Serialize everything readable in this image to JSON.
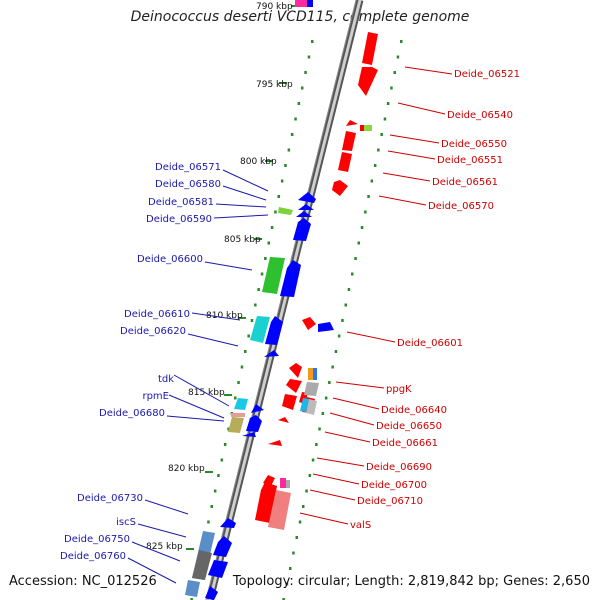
{
  "title": "Deinococcus deserti VCD115, complete genome",
  "accession_text": "Accession: NC_012526",
  "summary_text": "Topology: circular; Length: 2,819,842 bp; Genes: 2,650",
  "scale_labels": [
    "790 kbp",
    "795 kbp",
    "800 kbp",
    "805 kbp",
    "810 kbp",
    "815 kbp",
    "820 kbp",
    "825 kbp"
  ],
  "left_gene_labels": [
    "Deide_06571",
    "Deide_06580",
    "Deide_06581",
    "Deide_06590",
    "Deide_06600",
    "Deide_06610",
    "Deide_06620",
    "tdk",
    "rpmE",
    "Deide_06680",
    "Deide_06730",
    "iscS",
    "Deide_06750",
    "Deide_06760"
  ],
  "right_gene_labels": [
    "Deide_06521",
    "Deide_06540",
    "Deide_06550",
    "Deide_06551",
    "Deide_06561",
    "Deide_06570",
    "Deide_06601",
    "ppgK",
    "Deide_06640",
    "Deide_06650",
    "Deide_06661",
    "Deide_06690",
    "Deide_06700",
    "Deide_06710",
    "valS"
  ],
  "colors": {
    "forward_strand": "#0000ff",
    "reverse_strand": "#ff0000",
    "left_label": "#1a1aaa",
    "right_label": "#cc0000",
    "tick_dot": "#2a8a2a",
    "backbone": "#888888"
  }
}
